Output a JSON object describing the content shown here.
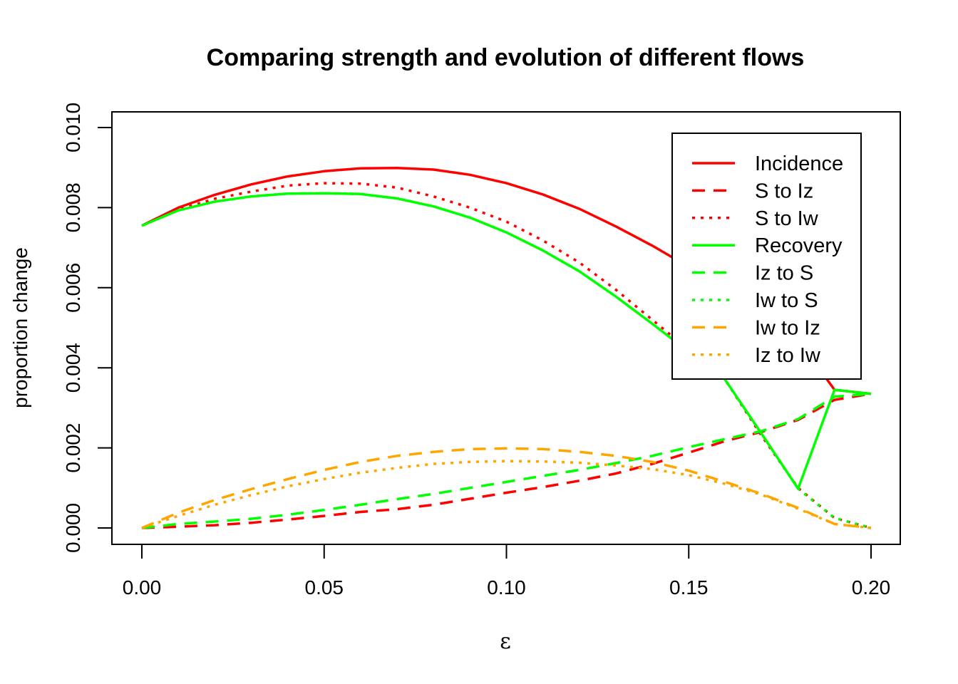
{
  "chart_data": {
    "type": "line",
    "title": "Comparing strength and evolution of different flows",
    "xlabel": "ε",
    "ylabel": "proportion change",
    "xlim": [
      0,
      0.2
    ],
    "ylim": [
      0,
      0.01
    ],
    "x_ticks": [
      "0.00",
      "0.05",
      "0.10",
      "0.15",
      "0.20"
    ],
    "y_ticks": [
      "0.000",
      "0.002",
      "0.004",
      "0.006",
      "0.008",
      "0.010"
    ],
    "grid": false,
    "legend_position": "top-right",
    "x": [
      0.0,
      0.01,
      0.02,
      0.03,
      0.04,
      0.05,
      0.06,
      0.07,
      0.08,
      0.09,
      0.1,
      0.11,
      0.12,
      0.13,
      0.14,
      0.15,
      0.16,
      0.17,
      0.18,
      0.19,
      0.2
    ],
    "series": [
      {
        "name": "Incidence",
        "color": "#ff0000",
        "dash": "solid",
        "values": [
          0.00755,
          0.008,
          0.00832,
          0.00858,
          0.00878,
          0.00891,
          0.00898,
          0.00899,
          0.00895,
          0.00882,
          0.00861,
          0.00833,
          0.00797,
          0.00753,
          0.00705,
          0.00652,
          0.00595,
          0.00535,
          0.0047,
          0.00345,
          0.00335
        ]
      },
      {
        "name": "S to Iz",
        "color": "#ff0000",
        "dash": "dashed",
        "values": [
          0.0,
          3e-05,
          7e-05,
          0.00013,
          0.00021,
          0.0003,
          0.0004,
          0.00047,
          0.00058,
          0.00073,
          0.00088,
          0.00102,
          0.00118,
          0.00136,
          0.0016,
          0.00188,
          0.00217,
          0.0024,
          0.0027,
          0.0032,
          0.00335
        ]
      },
      {
        "name": "S to Iw",
        "color": "#ff0000",
        "dash": "dotted",
        "values": [
          0.00755,
          0.00795,
          0.00822,
          0.0084,
          0.00855,
          0.00861,
          0.0086,
          0.0085,
          0.00828,
          0.008,
          0.00765,
          0.00718,
          0.00663,
          0.00595,
          0.0052,
          0.00445,
          0.0037,
          0.0023,
          0.001,
          0.00025,
          0.0
        ]
      },
      {
        "name": "Recovery",
        "color": "#00ff00",
        "dash": "solid",
        "values": [
          0.00755,
          0.00793,
          0.00815,
          0.00828,
          0.00835,
          0.00836,
          0.00834,
          0.00823,
          0.00803,
          0.00775,
          0.00738,
          0.00693,
          0.00641,
          0.00578,
          0.0051,
          0.0044,
          0.0037,
          0.00235,
          0.00098,
          0.00345,
          0.00335
        ]
      },
      {
        "name": "Iz to S",
        "color": "#00ff00",
        "dash": "dashed",
        "values": [
          0.0,
          0.0001,
          0.00016,
          0.00023,
          0.00033,
          0.00045,
          0.00058,
          0.00072,
          0.00085,
          0.001,
          0.00115,
          0.0013,
          0.00145,
          0.00162,
          0.0018,
          0.00202,
          0.00222,
          0.00242,
          0.00272,
          0.00328,
          0.00335
        ]
      },
      {
        "name": "Iw to S",
        "color": "#00ff00",
        "dash": "dotted",
        "values": [
          0.00755,
          0.00793,
          0.00815,
          0.00828,
          0.00835,
          0.00836,
          0.00834,
          0.00823,
          0.00803,
          0.00775,
          0.00738,
          0.00693,
          0.00641,
          0.00578,
          0.0051,
          0.0044,
          0.0037,
          0.00235,
          0.00098,
          0.00025,
          0.0
        ]
      },
      {
        "name": "Iw to Iz",
        "color": "#ffa500",
        "dash": "dashed",
        "values": [
          0.0,
          0.00038,
          0.0007,
          0.00097,
          0.00122,
          0.00145,
          0.00165,
          0.0018,
          0.0019,
          0.00197,
          0.00199,
          0.00197,
          0.0019,
          0.0018,
          0.00165,
          0.00143,
          0.00115,
          0.00085,
          0.0005,
          0.0001,
          0.0
        ]
      },
      {
        "name": "Iz to Iw",
        "color": "#ffa500",
        "dash": "dotted",
        "values": [
          0.0,
          0.0003,
          0.00058,
          0.00082,
          0.00104,
          0.00122,
          0.00138,
          0.0015,
          0.0016,
          0.00165,
          0.00167,
          0.00166,
          0.00163,
          0.00156,
          0.00147,
          0.00132,
          0.0011,
          0.00083,
          0.00048,
          0.0001,
          0.0
        ]
      }
    ]
  }
}
